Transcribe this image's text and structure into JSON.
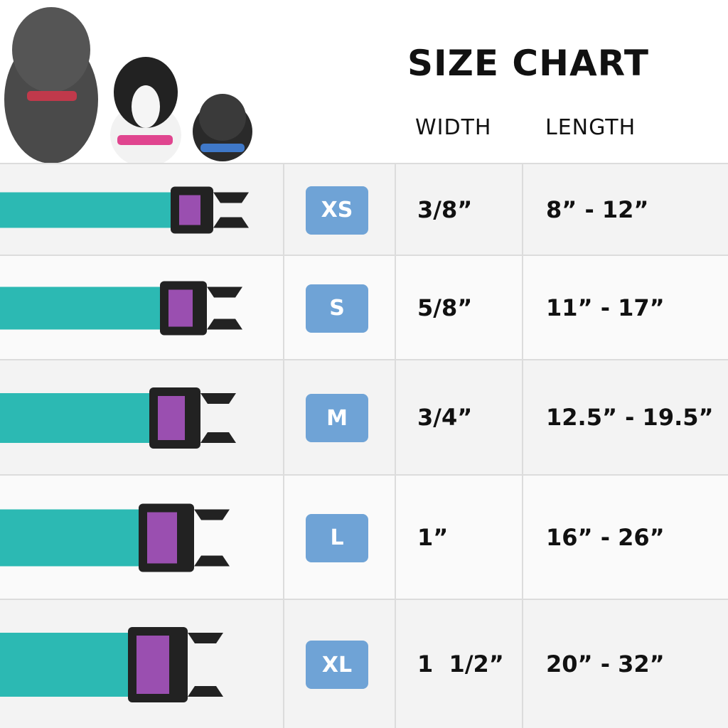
{
  "header": {
    "title": "SIZE CHART",
    "columns": [
      "WIDTH",
      "LENGTH"
    ]
  },
  "table": {
    "rows": [
      [
        "XS",
        "3/8”",
        "8” - 12”"
      ],
      [
        "S",
        "5/8”",
        "11” - 17”"
      ],
      [
        "M",
        "3/4”",
        "12.5” - 19.5”"
      ],
      [
        "L",
        "1”",
        "16” - 26”"
      ],
      [
        "XL",
        "1  1/2”",
        "20” - 32”"
      ]
    ]
  }
}
